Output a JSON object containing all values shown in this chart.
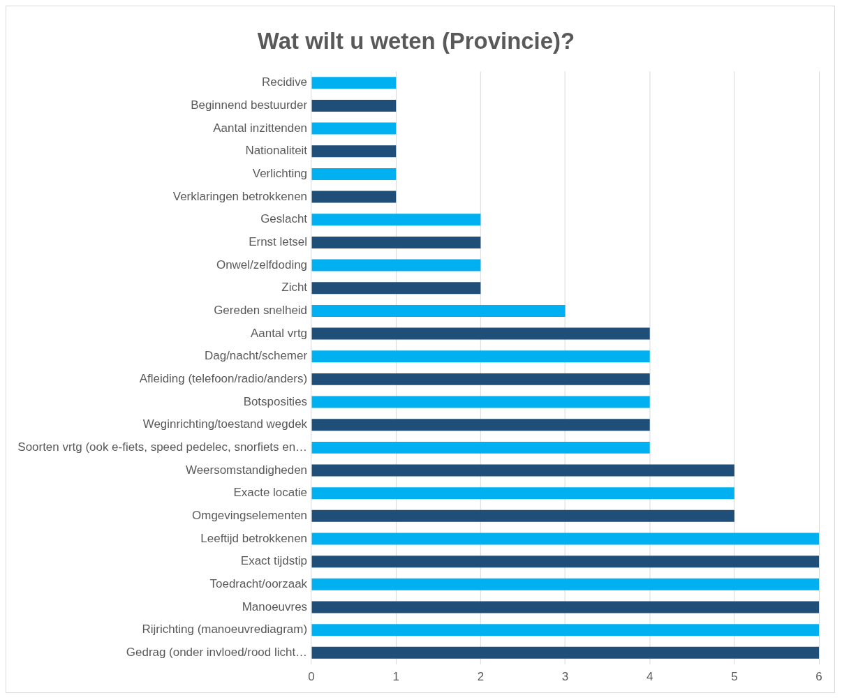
{
  "chart_data": {
    "type": "bar",
    "orientation": "horizontal",
    "title": "Wat wilt u weten (Provincie)?",
    "categories": [
      "Recidive",
      "Beginnend bestuurder",
      "Aantal inzittenden",
      "Nationaliteit",
      "Verlichting",
      "Verklaringen betrokkenen",
      "Geslacht",
      "Ernst letsel",
      "Onwel/zelfdoding",
      "Zicht",
      "Gereden snelheid",
      "Aantal vrtg",
      "Dag/nacht/schemer",
      "Afleiding (telefoon/radio/anders)",
      "Botsposities",
      "Weginrichting/toestand wegdek",
      "Soorten vrtg (ook e-fiets, speed pedelec, snorfiets en…",
      "Weersomstandigheden",
      "Exacte locatie",
      "Omgevingselementen",
      "Leeftijd betrokkenen",
      "Exact tijdstip",
      "Toedracht/oorzaak",
      "Manoeuvres",
      "Rijrichting (manoeuvrediagram)",
      "Gedrag (onder invloed/rood licht…"
    ],
    "values": [
      1,
      1,
      1,
      1,
      1,
      1,
      2,
      2,
      2,
      2,
      3,
      4,
      4,
      4,
      4,
      4,
      4,
      5,
      5,
      5,
      6,
      6,
      6,
      6,
      6,
      6
    ],
    "colors": [
      "#00b0f0",
      "#1f4e79",
      "#00b0f0",
      "#1f4e79",
      "#00b0f0",
      "#1f4e79",
      "#00b0f0",
      "#1f4e79",
      "#00b0f0",
      "#1f4e79",
      "#00b0f0",
      "#1f4e79",
      "#00b0f0",
      "#1f4e79",
      "#00b0f0",
      "#1f4e79",
      "#00b0f0",
      "#1f4e79",
      "#00b0f0",
      "#1f4e79",
      "#00b0f0",
      "#1f4e79",
      "#00b0f0",
      "#1f4e79",
      "#00b0f0",
      "#1f4e79"
    ],
    "xlim": [
      0,
      6
    ],
    "xticks": [
      0,
      1,
      2,
      3,
      4,
      5,
      6
    ],
    "grid": "x",
    "legend": false
  }
}
